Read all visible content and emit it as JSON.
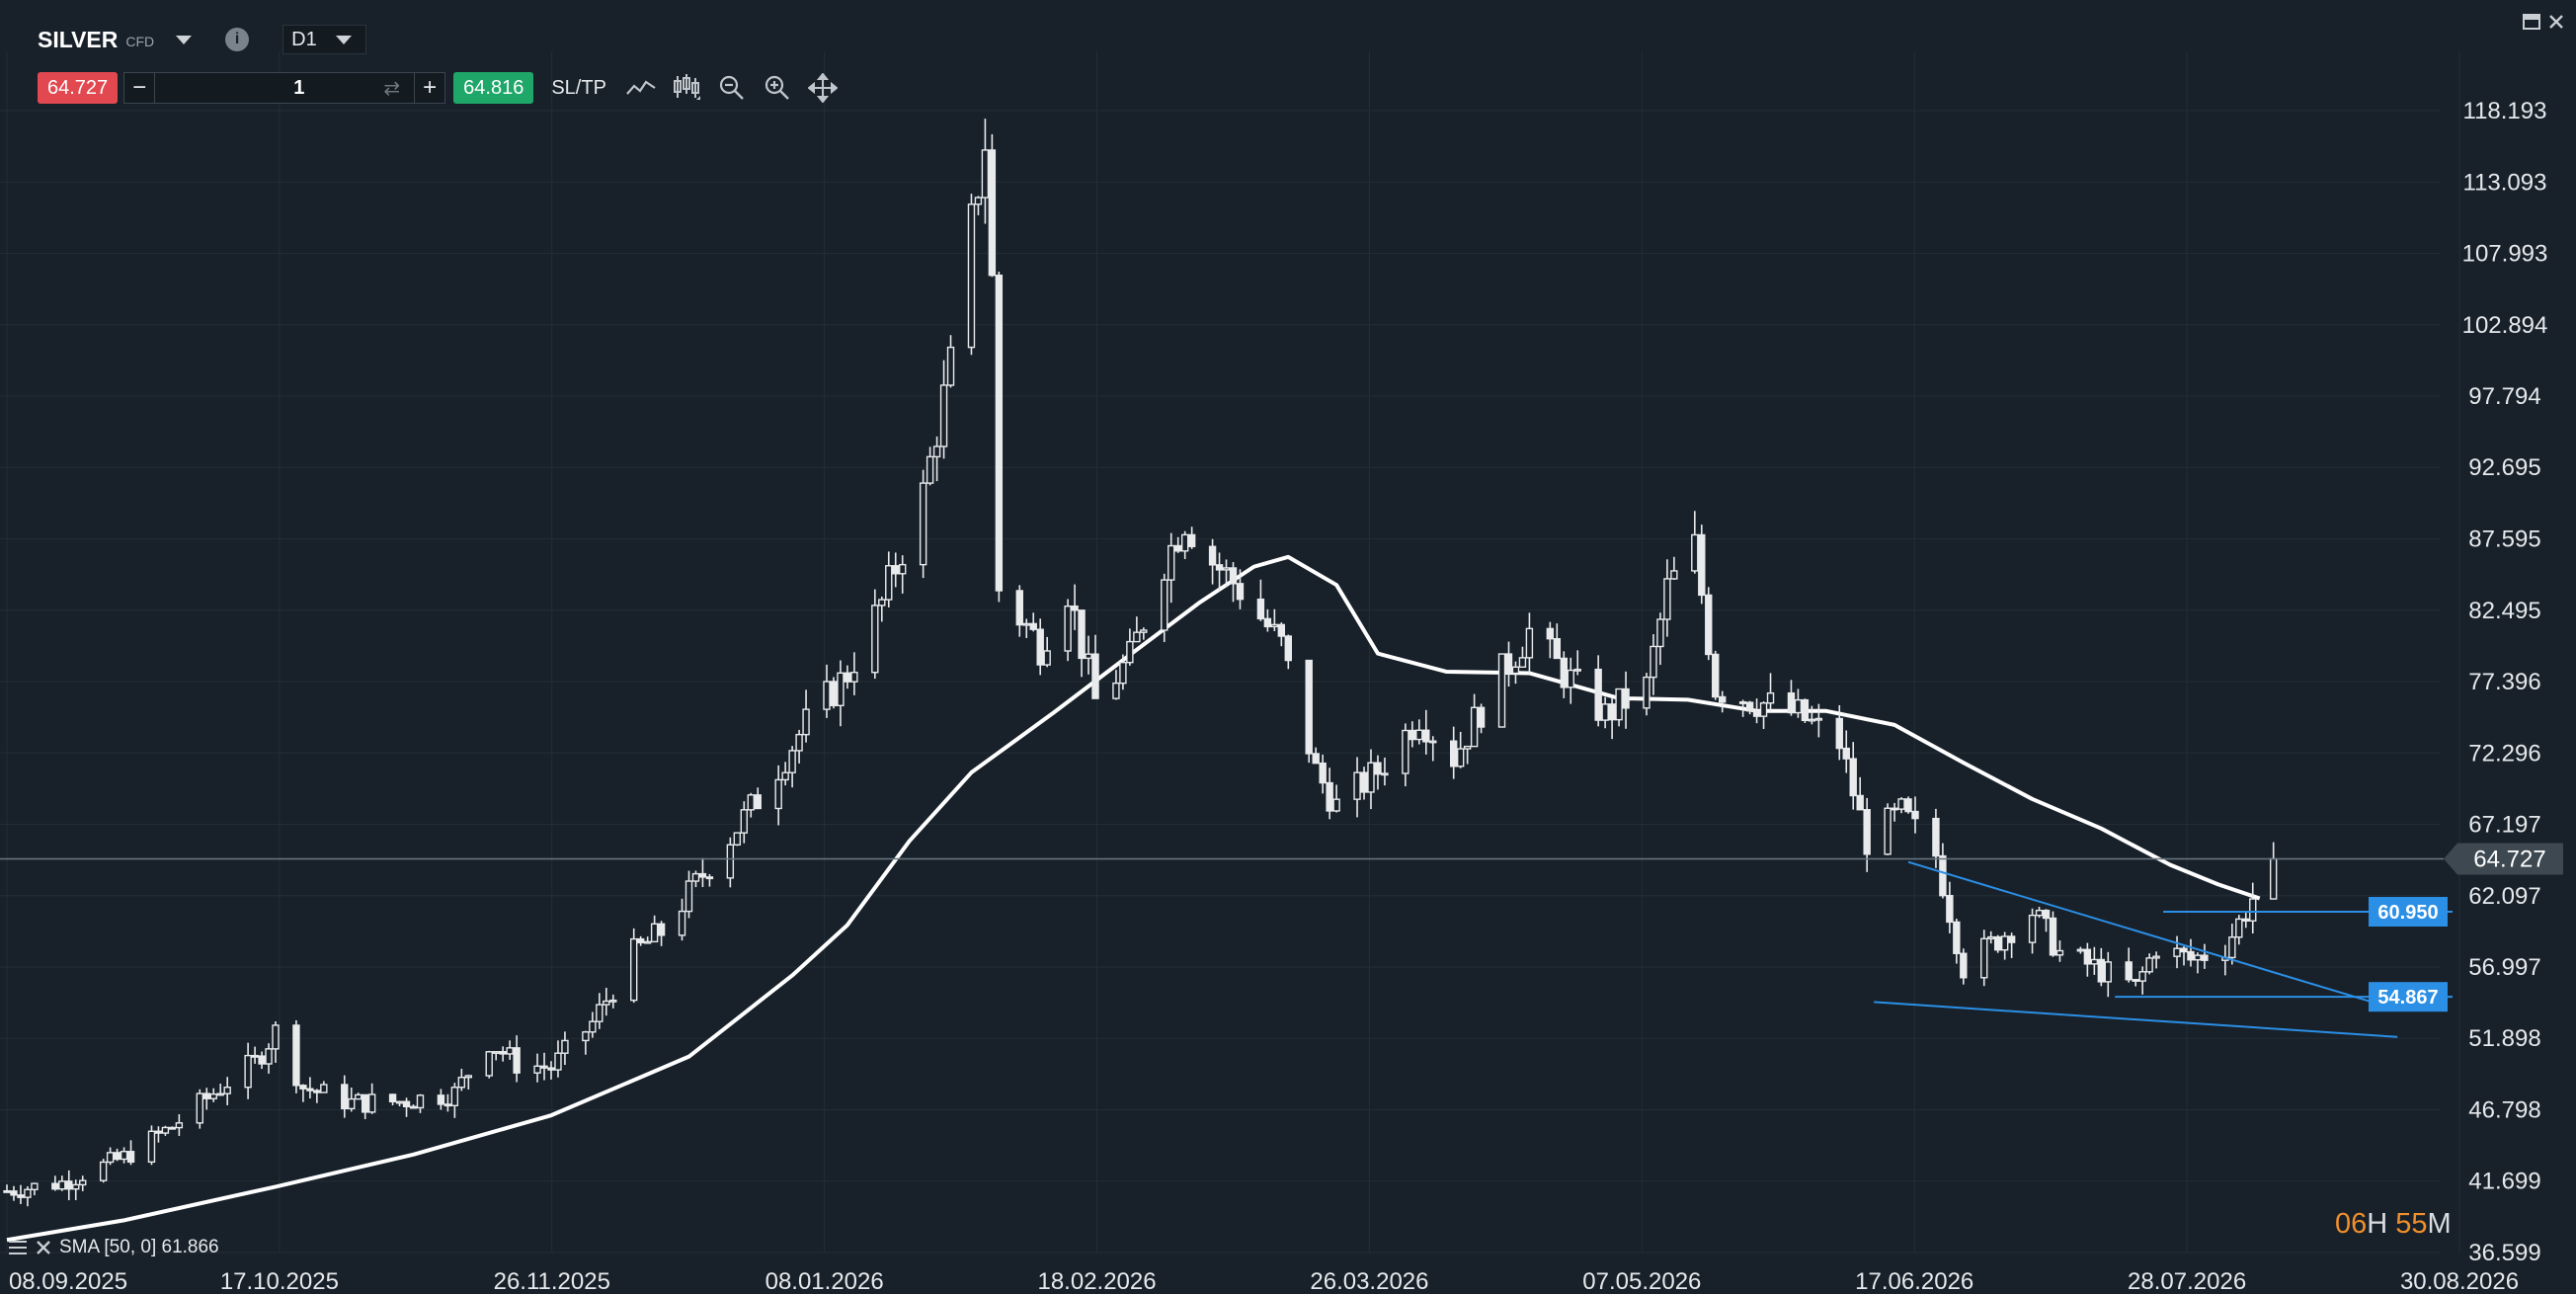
{
  "header": {
    "symbol": "SILVER",
    "symbol_type": "CFD",
    "info_glyph": "i",
    "timeframe": "D1",
    "sell_price": "64.727",
    "buy_price": "64.816",
    "quantity": "1",
    "minus_label": "−",
    "plus_label": "+",
    "sltp_label": "SL/TP",
    "icons": [
      "line-chart-icon",
      "candles-icon",
      "zoom-out-icon",
      "zoom-in-icon",
      "move-icon"
    ]
  },
  "indicator": {
    "label": "SMA [50, 0] 61.866"
  },
  "timer": {
    "hours": "06",
    "h_unit": "H",
    "minutes": "55",
    "m_unit": "M"
  },
  "colors": {
    "background": "#18212a",
    "grid": "#232d36",
    "candle": "#e8eaec",
    "sma": "#ffffff",
    "trendline": "#2b8fe6",
    "price_line": "#6b7780",
    "sell": "#e24850",
    "buy": "#1fa76a",
    "timer_hours": "#f08f2b"
  },
  "chart_data": {
    "type": "candlestick",
    "symbol": "SILVER",
    "timeframe": "D1",
    "y_axis": {
      "range": [
        36.599,
        118.193
      ],
      "ticks": [
        118.193,
        113.093,
        107.993,
        102.894,
        97.794,
        92.695,
        87.595,
        82.495,
        77.396,
        72.296,
        67.197,
        62.097,
        56.997,
        51.898,
        46.798,
        41.699,
        36.599
      ],
      "tick_labels": [
        "118.193",
        "113.093",
        "107.993",
        "102.894",
        "97.794",
        "92.695",
        "87.595",
        "82.495",
        "77.396",
        "72.296",
        "67.197",
        "62.097",
        "56.997",
        "51.898",
        "46.798",
        "41.699",
        "36.599"
      ]
    },
    "x_axis": {
      "range": [
        "2025-09-08",
        "2026-08-30"
      ],
      "tick_labels": [
        "08.09.2025",
        "17.10.2025",
        "26.11.2025",
        "08.01.2026",
        "18.02.2026",
        "26.03.2026",
        "07.05.2026",
        "17.06.2026",
        "28.07.2026",
        "30.08.2026"
      ]
    },
    "closes": [
      {
        "date": "2025-09-08",
        "close": 41.0
      },
      {
        "date": "2025-09-16",
        "close": 41.6
      },
      {
        "date": "2025-09-25",
        "close": 43.4
      },
      {
        "date": "2025-10-02",
        "close": 45.6
      },
      {
        "date": "2025-10-10",
        "close": 48.8
      },
      {
        "date": "2025-10-14",
        "close": 50.2
      },
      {
        "date": "2025-10-17",
        "close": 52.4
      },
      {
        "date": "2025-10-21",
        "close": 48.4
      },
      {
        "date": "2025-10-28",
        "close": 47.3
      },
      {
        "date": "2025-11-04",
        "close": 47.4
      },
      {
        "date": "2025-11-12",
        "close": 48.0
      },
      {
        "date": "2025-11-17",
        "close": 51.7
      },
      {
        "date": "2025-11-21",
        "close": 50.1
      },
      {
        "date": "2025-11-26",
        "close": 49.8
      },
      {
        "date": "2025-12-02",
        "close": 53.0
      },
      {
        "date": "2025-12-08",
        "close": 58.0
      },
      {
        "date": "2025-12-12",
        "close": 59.5
      },
      {
        "date": "2025-12-19",
        "close": 64.3
      },
      {
        "date": "2025-12-26",
        "close": 69.0
      },
      {
        "date": "2026-01-02",
        "close": 74.4
      },
      {
        "date": "2026-01-08",
        "close": 78.0
      },
      {
        "date": "2026-01-13",
        "close": 83.0
      },
      {
        "date": "2026-01-19",
        "close": 90.8
      },
      {
        "date": "2026-01-23",
        "close": 100.0
      },
      {
        "date": "2026-01-26",
        "close": 110.0
      },
      {
        "date": "2026-01-28",
        "close": 116.0
      },
      {
        "date": "2026-01-29",
        "close": 106.0
      },
      {
        "date": "2026-01-30",
        "close": 84.0
      },
      {
        "date": "2026-02-05",
        "close": 80.0
      },
      {
        "date": "2026-02-09",
        "close": 84.0
      },
      {
        "date": "2026-02-13",
        "close": 76.0
      },
      {
        "date": "2026-02-18",
        "close": 79.0
      },
      {
        "date": "2026-02-23",
        "close": 86.0
      },
      {
        "date": "2026-02-26",
        "close": 89.0
      },
      {
        "date": "2026-03-02",
        "close": 86.0
      },
      {
        "date": "2026-03-06",
        "close": 84.0
      },
      {
        "date": "2026-03-12",
        "close": 80.0
      },
      {
        "date": "2026-03-17",
        "close": 71.0
      },
      {
        "date": "2026-03-20",
        "close": 68.5
      },
      {
        "date": "2026-03-26",
        "close": 71.0
      },
      {
        "date": "2026-04-01",
        "close": 75.0
      },
      {
        "date": "2026-04-06",
        "close": 72.0
      },
      {
        "date": "2026-04-13",
        "close": 78.0
      },
      {
        "date": "2026-04-17",
        "close": 81.0
      },
      {
        "date": "2026-04-22",
        "close": 78.0
      },
      {
        "date": "2026-04-28",
        "close": 75.0
      },
      {
        "date": "2026-05-04",
        "close": 77.0
      },
      {
        "date": "2026-05-07",
        "close": 84.0
      },
      {
        "date": "2026-05-11",
        "close": 87.0
      },
      {
        "date": "2026-05-14",
        "close": 77.0
      },
      {
        "date": "2026-05-20",
        "close": 76.0
      },
      {
        "date": "2026-05-26",
        "close": 75.0
      },
      {
        "date": "2026-06-01",
        "close": 73.0
      },
      {
        "date": "2026-06-05",
        "close": 66.0
      },
      {
        "date": "2026-06-10",
        "close": 68.0
      },
      {
        "date": "2026-06-15",
        "close": 65.0
      },
      {
        "date": "2026-06-19",
        "close": 57.0
      },
      {
        "date": "2026-06-24",
        "close": 59.0
      },
      {
        "date": "2026-06-29",
        "close": 61.0
      },
      {
        "date": "2026-07-03",
        "close": 58.0
      },
      {
        "date": "2026-07-08",
        "close": 57.0
      },
      {
        "date": "2026-07-14",
        "close": 55.5
      },
      {
        "date": "2026-07-17",
        "close": 58.5
      },
      {
        "date": "2026-07-22",
        "close": 57.5
      },
      {
        "date": "2026-07-27",
        "close": 58.5
      },
      {
        "date": "2026-07-30",
        "close": 61.0
      },
      {
        "date": "2026-08-03",
        "close": 64.727
      }
    ],
    "sma": {
      "name": "SMA [50, 0]",
      "last_value": 61.866,
      "points": [
        {
          "date": "2025-09-08",
          "value": 37.5
        },
        {
          "date": "2025-09-25",
          "value": 38.9
        },
        {
          "date": "2025-10-17",
          "value": 41.3
        },
        {
          "date": "2025-11-06",
          "value": 43.6
        },
        {
          "date": "2025-11-26",
          "value": 46.4
        },
        {
          "date": "2025-12-16",
          "value": 50.6
        },
        {
          "date": "2025-12-31",
          "value": 56.4
        },
        {
          "date": "2026-01-08",
          "value": 60.0
        },
        {
          "date": "2026-01-17",
          "value": 66.0
        },
        {
          "date": "2026-01-26",
          "value": 70.9
        },
        {
          "date": "2026-02-07",
          "value": 75.2
        },
        {
          "date": "2026-02-18",
          "value": 79.3
        },
        {
          "date": "2026-02-28",
          "value": 83.0
        },
        {
          "date": "2026-03-08",
          "value": 85.6
        },
        {
          "date": "2026-03-13",
          "value": 86.3
        },
        {
          "date": "2026-03-20",
          "value": 84.3
        },
        {
          "date": "2026-03-26",
          "value": 79.4
        },
        {
          "date": "2026-04-05",
          "value": 78.1
        },
        {
          "date": "2026-04-17",
          "value": 78.0
        },
        {
          "date": "2026-04-30",
          "value": 76.2
        },
        {
          "date": "2026-05-10",
          "value": 76.1
        },
        {
          "date": "2026-05-20",
          "value": 75.3
        },
        {
          "date": "2026-05-30",
          "value": 75.3
        },
        {
          "date": "2026-06-09",
          "value": 74.3
        },
        {
          "date": "2026-06-19",
          "value": 71.6
        },
        {
          "date": "2026-06-29",
          "value": 69.0
        },
        {
          "date": "2026-07-09",
          "value": 66.9
        },
        {
          "date": "2026-07-19",
          "value": 64.3
        },
        {
          "date": "2026-07-26",
          "value": 62.9
        },
        {
          "date": "2026-08-01",
          "value": 61.9
        }
      ]
    },
    "trendlines": [
      {
        "start": {
          "date": "2026-06-11",
          "value": 64.5
        },
        "end": {
          "date": "2026-08-20",
          "value": 54.1
        }
      },
      {
        "start": {
          "date": "2026-06-06",
          "value": 54.5
        },
        "end": {
          "date": "2026-08-21",
          "value": 52.0
        }
      },
      {
        "start": {
          "date": "2026-07-18",
          "value": 60.95
        },
        "end": {
          "date": "2026-08-29",
          "value": 60.95
        }
      },
      {
        "start": {
          "date": "2026-07-11",
          "value": 54.867
        },
        "end": {
          "date": "2026-08-29",
          "value": 54.867
        }
      }
    ],
    "price_labels": [
      {
        "value": 64.727,
        "label": "64.727",
        "kind": "current-price"
      },
      {
        "value": 60.95,
        "label": "60.950",
        "kind": "level"
      },
      {
        "value": 54.867,
        "label": "54.867",
        "kind": "level"
      }
    ],
    "grid": true
  }
}
